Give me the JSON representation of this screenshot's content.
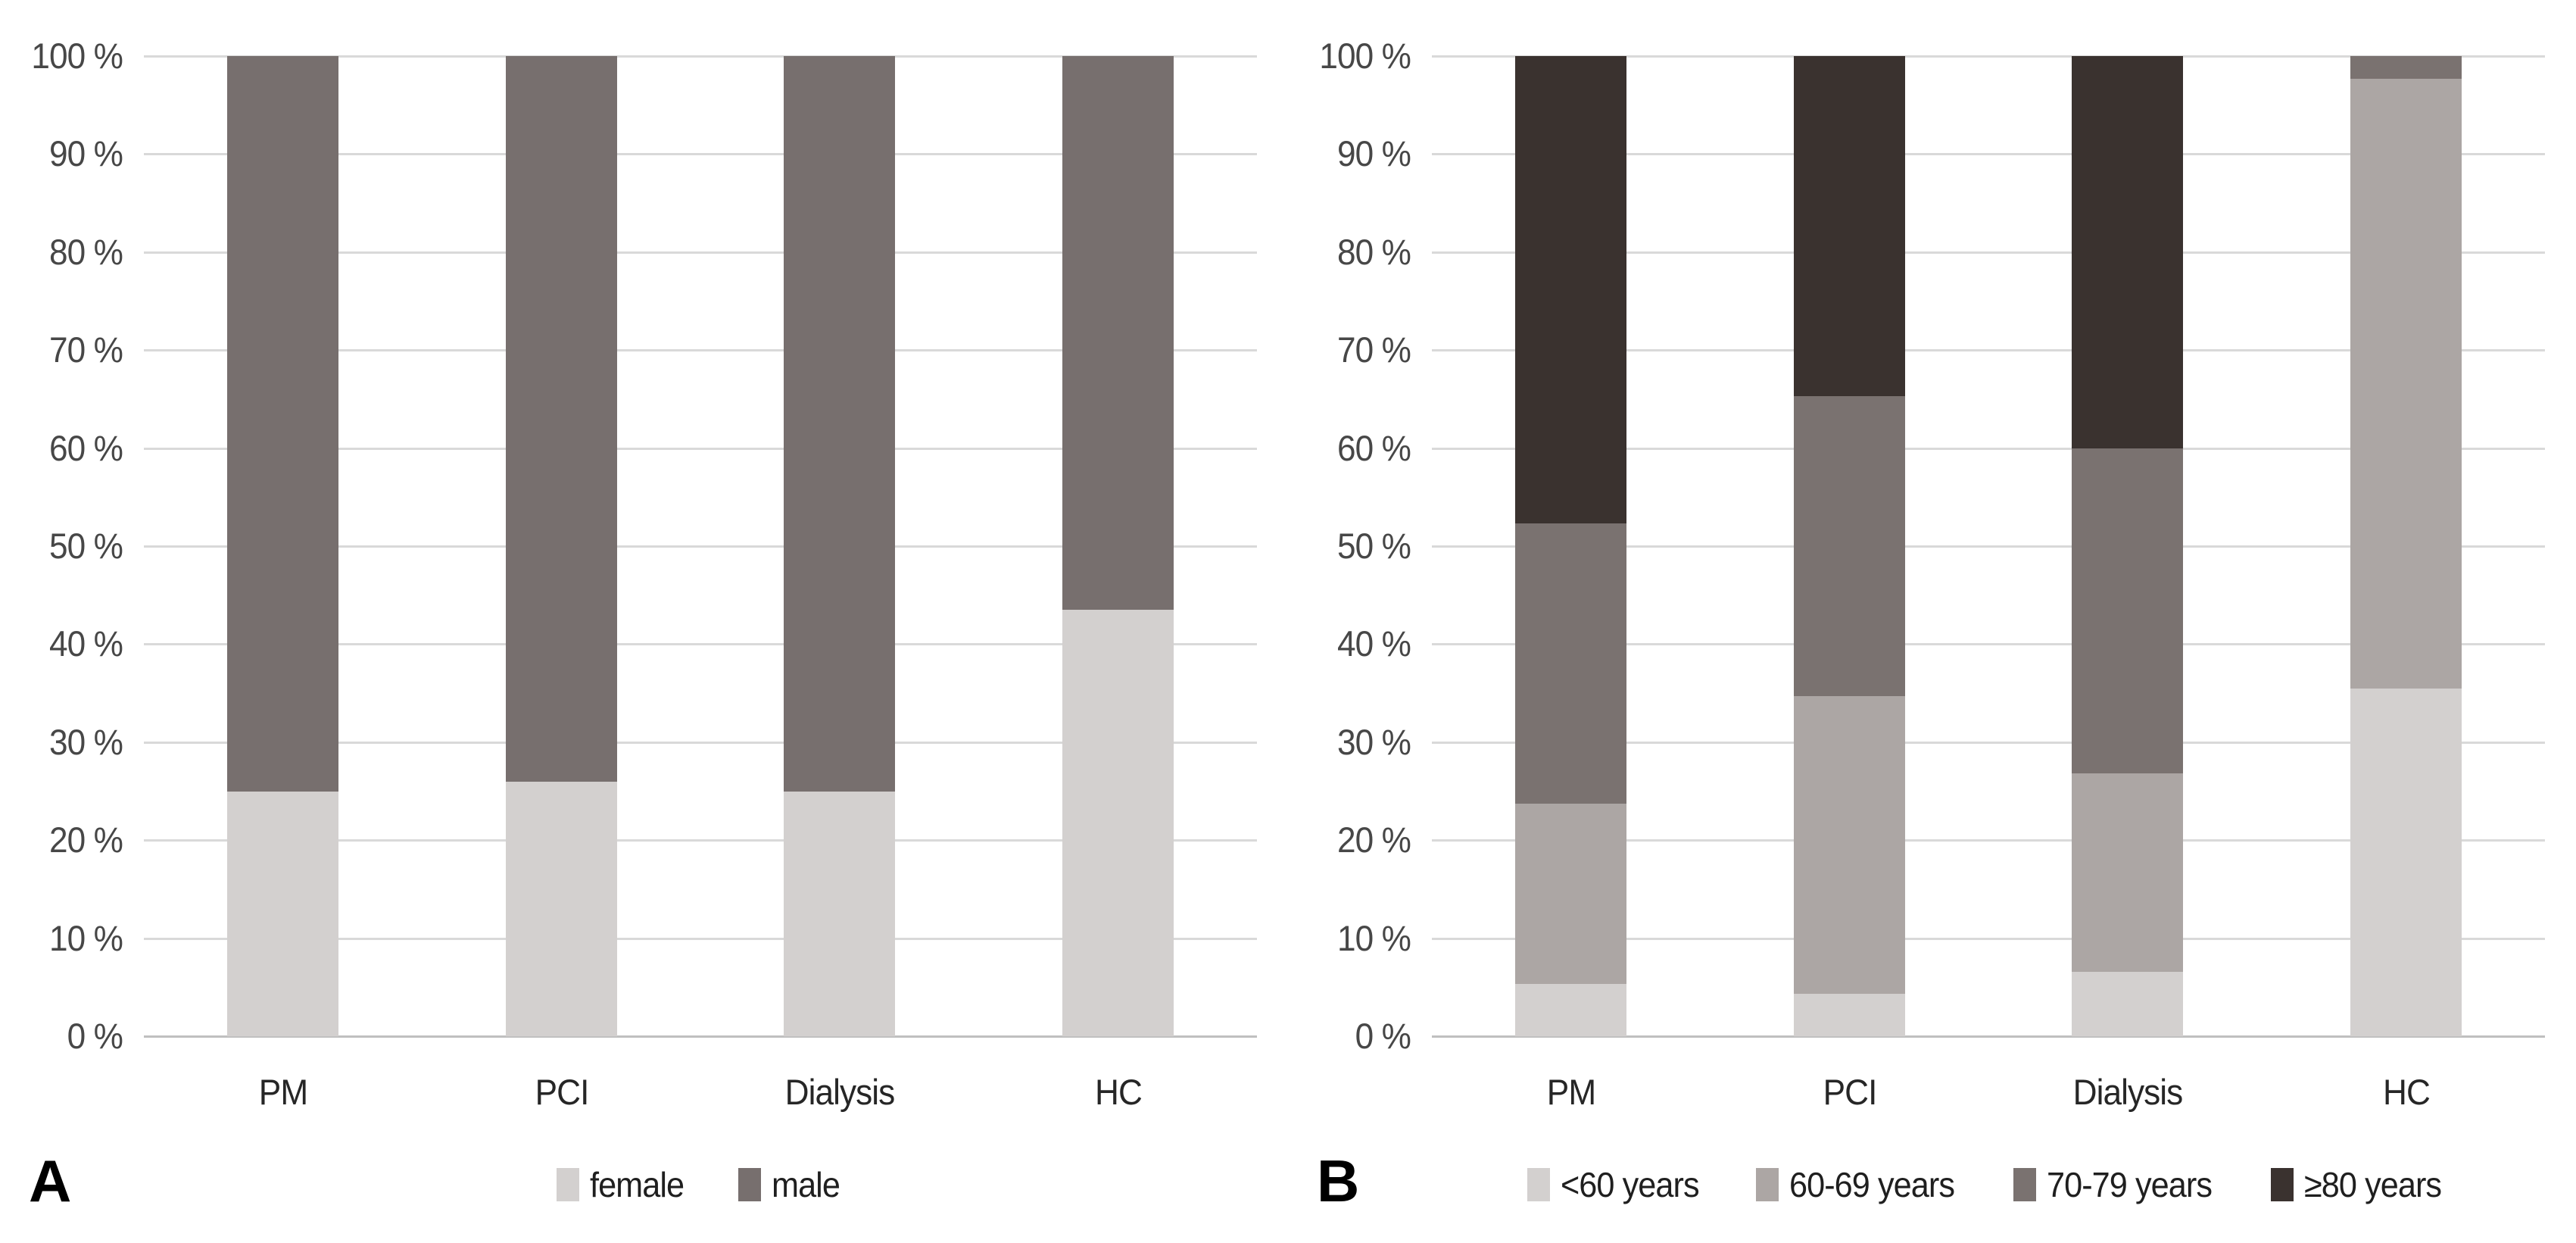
{
  "figure": {
    "background": "#ffffff",
    "grid_color": "#d9d9d9",
    "baseline_color": "#c0c0c0",
    "tick_label_color": "#474747",
    "category_label_color": "#262626",
    "legend_text_color": "#1f1f1f",
    "ytick_labels": [
      "0 %",
      "10 %",
      "20 %",
      "30 %",
      "40 %",
      "50 %",
      "60 %",
      "70 %",
      "80 %",
      "90 %",
      "100 %"
    ]
  },
  "chart_data": [
    {
      "type": "bar",
      "stacked": true,
      "percent_stacked": true,
      "panel_label": "A",
      "title": "",
      "xlabel": "",
      "ylabel": "",
      "categories": [
        "PM",
        "PCI",
        "Dialysis",
        "HC"
      ],
      "series": [
        {
          "name": "female",
          "color": "#d3d0cf",
          "values": [
            25,
            26,
            25,
            43.5
          ]
        },
        {
          "name": "male",
          "color": "#776f6e",
          "values": [
            75,
            74,
            75,
            56.5
          ]
        }
      ],
      "ylim": [
        0,
        100
      ],
      "ytick_step": 10,
      "ytick_suffix": " %",
      "grid": true,
      "legend_position": "bottom"
    },
    {
      "type": "bar",
      "stacked": true,
      "percent_stacked": true,
      "panel_label": "B",
      "title": "",
      "xlabel": "",
      "ylabel": "",
      "categories": [
        "PM",
        "PCI",
        "Dialysis",
        "HC"
      ],
      "series": [
        {
          "name": "<60 years",
          "color": "#d3d0cf",
          "values": [
            5.3,
            4.3,
            6.6,
            35.5
          ]
        },
        {
          "name": "60-69 years",
          "color": "#aca6a4",
          "values": [
            18.4,
            30.4,
            20.2,
            62.2
          ]
        },
        {
          "name": "70-79 years",
          "color": "#7a7270",
          "values": [
            28.6,
            30.6,
            33.2,
            2.3
          ]
        },
        {
          "name": "≥80 years",
          "color": "#3a322f",
          "values": [
            47.7,
            34.7,
            40,
            0
          ]
        }
      ],
      "ylim": [
        0,
        100
      ],
      "ytick_step": 10,
      "ytick_suffix": " %",
      "grid": true,
      "legend_position": "bottom"
    }
  ]
}
